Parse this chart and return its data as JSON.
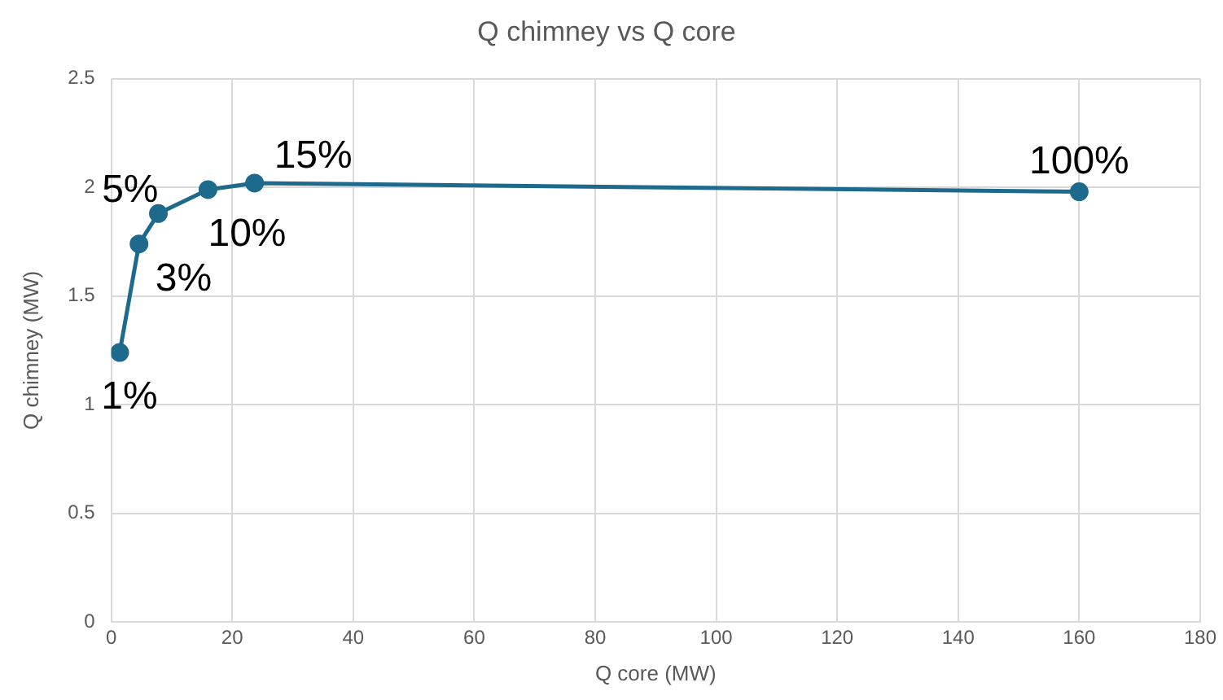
{
  "chart_data": {
    "type": "line",
    "title": "Q chimney vs Q core",
    "xlabel": "Q core (MW)",
    "ylabel": "Q chimney (MW)",
    "x": [
      1.4,
      4.6,
      7.8,
      16,
      23.7,
      160
    ],
    "series": [
      {
        "color": "#1e6a8d",
        "values": [
          1.24,
          1.74,
          1.88,
          1.99,
          2.02,
          1.98
        ]
      }
    ],
    "annotations": [
      {
        "text": "1%",
        "x": 1.4,
        "y": 1.24
      },
      {
        "text": "3%",
        "x": 4.6,
        "y": 1.74
      },
      {
        "text": "5%",
        "x": 7.8,
        "y": 1.88
      },
      {
        "text": "10%",
        "x": 16,
        "y": 1.99
      },
      {
        "text": "15%",
        "x": 23.7,
        "y": 2.02
      },
      {
        "text": "100%",
        "x": 160,
        "y": 1.98
      }
    ],
    "xlim": [
      0,
      180
    ],
    "xticks": [
      0,
      20,
      40,
      60,
      80,
      100,
      120,
      140,
      160,
      180
    ],
    "ylim": [
      0,
      2.5
    ],
    "yticks": [
      0,
      0.5,
      1,
      1.5,
      2,
      2.5
    ],
    "grid": true,
    "legend": false,
    "marker": "circle",
    "line_style": "solid"
  }
}
